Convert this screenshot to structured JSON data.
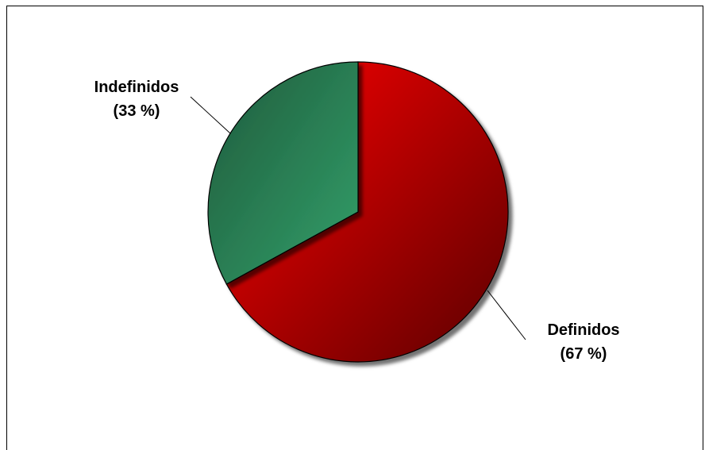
{
  "chart_data": {
    "type": "pie",
    "categories": [
      "Definidos",
      "Indefinidos"
    ],
    "values": [
      67,
      33
    ],
    "labels": [
      {
        "name": "Definidos",
        "pct_text": "(67 %)"
      },
      {
        "name": "Indefinidos",
        "pct_text": "(33 %)"
      }
    ],
    "colors": {
      "Definidos": {
        "light": "#ff0000",
        "dark": "#5a0000"
      },
      "Indefinidos": {
        "light": "#33a06a",
        "dark": "#1f5a3c"
      }
    },
    "start_angle_deg": 0,
    "direction": "clockwise",
    "title": "",
    "legend": "none"
  }
}
